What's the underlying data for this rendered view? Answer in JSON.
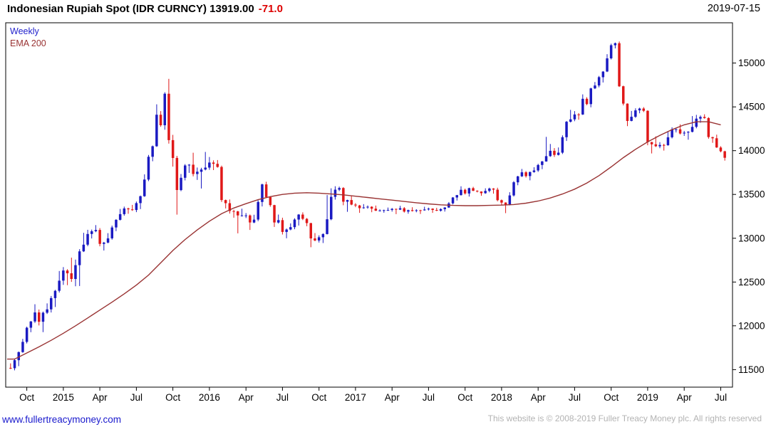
{
  "header": {
    "title": "Indonesian Rupiah Spot (IDR CURNCY) 13919.00",
    "change": "-71.0",
    "date": "2019-07-15"
  },
  "legend": {
    "timeframe": "Weekly",
    "overlay": "EMA 200"
  },
  "footer": {
    "site": "www.fullertreacymoney.com",
    "copyright": "This website is © 2008-2019 Fuller Treacy Money plc. All rights reserved"
  },
  "colors": {
    "up": "#1a1ac2",
    "down": "#e01818",
    "ema": "#993333",
    "legend_weekly": "#2222cc",
    "title_change": "#dd0000",
    "link": "#1a1acd",
    "copyright": "#b3b3b3",
    "axis": "#000000"
  },
  "chart_data": {
    "type": "candlestick",
    "title": "Indonesian Rupiah Spot (IDR CURNCY)",
    "timeframe": "Weekly",
    "overlay": "EMA 200",
    "last_price": 13919.0,
    "change": -71.0,
    "as_of": "2019-07-15",
    "ylim": [
      11300,
      15460
    ],
    "y_ticks": [
      11500,
      12000,
      12500,
      13000,
      13500,
      14000,
      14500,
      15000
    ],
    "x_ticks": [
      {
        "label": "Oct",
        "m": 1
      },
      {
        "label": "2015",
        "m": 4
      },
      {
        "label": "Apr",
        "m": 7
      },
      {
        "label": "Jul",
        "m": 10
      },
      {
        "label": "Oct",
        "m": 13
      },
      {
        "label": "2016",
        "m": 16
      },
      {
        "label": "Apr",
        "m": 19
      },
      {
        "label": "Jul",
        "m": 22
      },
      {
        "label": "Oct",
        "m": 25
      },
      {
        "label": "2017",
        "m": 28
      },
      {
        "label": "Apr",
        "m": 31
      },
      {
        "label": "Jul",
        "m": 34
      },
      {
        "label": "Oct",
        "m": 37
      },
      {
        "label": "2018",
        "m": 40
      },
      {
        "label": "Apr",
        "m": 43
      },
      {
        "label": "Jul",
        "m": 46
      },
      {
        "label": "Oct",
        "m": 49
      },
      {
        "label": "2019",
        "m": 52
      },
      {
        "label": "Apr",
        "m": 55
      },
      {
        "label": "Jul",
        "m": 58
      }
    ],
    "months": [
      "2014-09",
      "2014-10",
      "2014-11",
      "2014-12",
      "2015-01",
      "2015-02",
      "2015-03",
      "2015-04",
      "2015-05",
      "2015-06",
      "2015-07",
      "2015-08",
      "2015-09",
      "2015-10",
      "2015-11",
      "2015-12",
      "2016-01",
      "2016-02",
      "2016-03",
      "2016-04",
      "2016-05",
      "2016-06",
      "2016-07",
      "2016-08",
      "2016-09",
      "2016-10",
      "2016-11",
      "2016-12",
      "2017-01",
      "2017-02",
      "2017-03",
      "2017-04",
      "2017-05",
      "2017-06",
      "2017-07",
      "2017-08",
      "2017-09",
      "2017-10",
      "2017-11",
      "2017-12",
      "2018-01",
      "2018-02",
      "2018-03",
      "2018-04",
      "2018-05",
      "2018-06",
      "2018-07",
      "2018-08",
      "2018-09",
      "2018-10",
      "2018-11",
      "2018-12",
      "2019-01",
      "2019-02",
      "2019-03",
      "2019-04",
      "2019-05",
      "2019-06",
      "2019-07"
    ],
    "monthly_ohlc": [
      [
        11520,
        11760,
        11440,
        11700
      ],
      [
        11700,
        12090,
        11640,
        12050
      ],
      [
        12050,
        12260,
        11910,
        12150
      ],
      [
        12150,
        12480,
        12030,
        12400
      ],
      [
        12400,
        12730,
        12240,
        12600
      ],
      [
        12600,
        13060,
        12320,
        12850
      ],
      [
        12850,
        13240,
        12790,
        13080
      ],
      [
        13080,
        13150,
        12860,
        12950
      ],
      [
        12950,
        13280,
        12900,
        13210
      ],
      [
        13210,
        13400,
        13150,
        13330
      ],
      [
        13330,
        13540,
        13250,
        13480
      ],
      [
        13480,
        14120,
        13420,
        14050
      ],
      [
        14050,
        14790,
        13990,
        14650
      ],
      [
        14650,
        14850,
        13220,
        13550
      ],
      [
        13550,
        13890,
        13450,
        13840
      ],
      [
        13840,
        14000,
        13560,
        13785
      ],
      [
        13785,
        14060,
        13700,
        13850
      ],
      [
        13850,
        13900,
        13330,
        13400
      ],
      [
        13400,
        13450,
        13020,
        13260
      ],
      [
        13260,
        13350,
        13080,
        13180
      ],
      [
        13180,
        13680,
        13120,
        13615
      ],
      [
        13615,
        13650,
        13120,
        13180
      ],
      [
        13180,
        13270,
        13000,
        13100
      ],
      [
        13100,
        13320,
        13020,
        13270
      ],
      [
        13270,
        13300,
        12880,
        12998
      ],
      [
        12998,
        13120,
        12920,
        13048
      ],
      [
        13048,
        13880,
        13010,
        13555
      ],
      [
        13555,
        13590,
        13300,
        13436
      ],
      [
        13436,
        13490,
        13280,
        13343
      ],
      [
        13343,
        13390,
        13290,
        13338
      ],
      [
        13338,
        13380,
        13290,
        13321
      ],
      [
        13321,
        13360,
        13260,
        13327
      ],
      [
        13327,
        13370,
        13280,
        13321
      ],
      [
        13321,
        13360,
        13270,
        13319
      ],
      [
        13319,
        13360,
        13280,
        13323
      ],
      [
        13323,
        13380,
        13290,
        13351
      ],
      [
        13351,
        13510,
        13310,
        13492
      ],
      [
        13492,
        13620,
        13450,
        13572
      ],
      [
        13572,
        13590,
        13480,
        13514
      ],
      [
        13514,
        13590,
        13460,
        13555
      ],
      [
        13555,
        13580,
        13270,
        13380
      ],
      [
        13380,
        13750,
        13340,
        13707
      ],
      [
        13707,
        13800,
        13650,
        13756
      ],
      [
        13756,
        13920,
        13700,
        13877
      ],
      [
        13877,
        14210,
        13850,
        13951
      ],
      [
        13951,
        14400,
        13900,
        14330
      ],
      [
        14330,
        14540,
        14260,
        14413
      ],
      [
        14413,
        14770,
        14370,
        14711
      ],
      [
        14711,
        14950,
        14640,
        14903
      ],
      [
        14903,
        15284,
        14860,
        15227
      ],
      [
        15227,
        15250,
        14270,
        14339
      ],
      [
        14339,
        14560,
        14300,
        14481
      ],
      [
        14481,
        14500,
        13950,
        14072
      ],
      [
        14072,
        14180,
        13990,
        14062
      ],
      [
        14062,
        14320,
        14020,
        14244
      ],
      [
        14244,
        14310,
        14120,
        14215
      ],
      [
        14215,
        14530,
        14160,
        14385
      ],
      [
        14385,
        14420,
        14080,
        14141
      ],
      [
        14141,
        14190,
        13880,
        13919
      ]
    ],
    "ema200": [
      11620,
      11690,
      11760,
      11835,
      11915,
      12000,
      12090,
      12180,
      12270,
      12365,
      12465,
      12580,
      12720,
      12860,
      12985,
      13095,
      13195,
      13280,
      13345,
      13395,
      13440,
      13475,
      13500,
      13515,
      13520,
      13515,
      13505,
      13495,
      13480,
      13465,
      13450,
      13435,
      13420,
      13405,
      13392,
      13382,
      13375,
      13372,
      13372,
      13375,
      13378,
      13385,
      13400,
      13425,
      13460,
      13505,
      13560,
      13630,
      13715,
      13815,
      13920,
      14015,
      14100,
      14175,
      14240,
      14295,
      14330,
      14330,
      14295
    ]
  }
}
